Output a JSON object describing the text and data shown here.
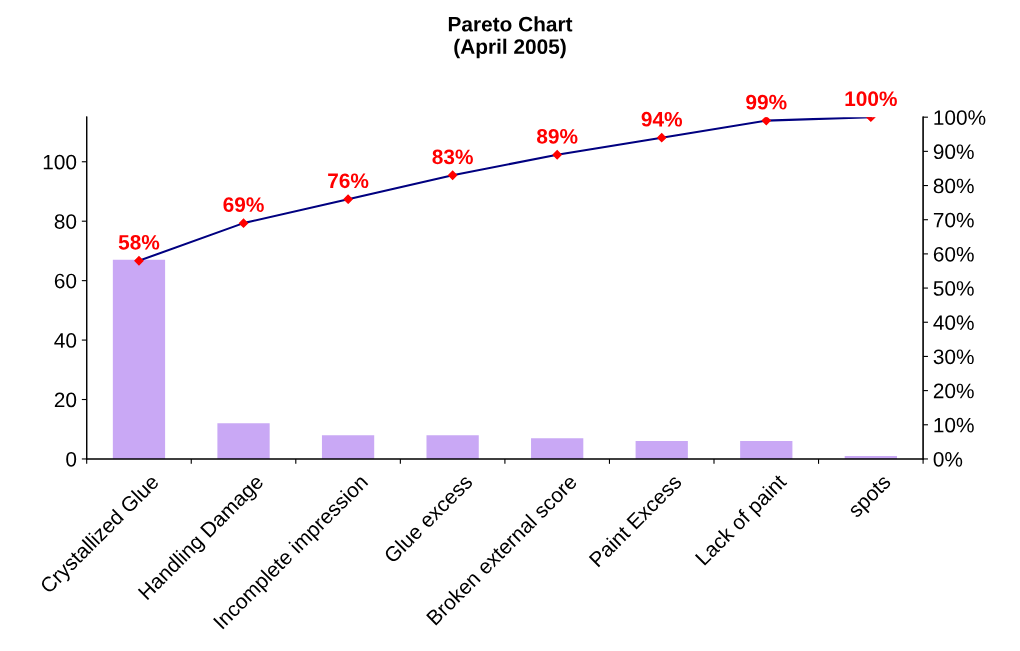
{
  "chart_data": {
    "type": "bar",
    "title": "Pareto Chart\n(April 2005)",
    "categories": [
      "Crystallized Glue",
      "Handling Damage",
      "Incomplete impression",
      "Glue excess",
      "Broken external score",
      "Paint Excess",
      "Lack of paint",
      "spots"
    ],
    "series": [
      {
        "color": "#c9a8f5",
        "values": [
          67,
          12,
          8,
          8,
          7,
          6,
          6,
          1
        ]
      },
      {
        "type": "line",
        "axis": "y2",
        "color": "#000080",
        "colors": [
          "#ff0000",
          "#ff0000",
          "#ff0000",
          "#ff0000",
          "#ff0000",
          "#ff0000",
          "#ff0000",
          "#ff0000"
        ],
        "values": [
          58,
          69,
          76,
          83,
          89,
          94,
          99,
          100
        ],
        "value_labels": [
          "58%",
          "69%",
          "76%",
          "83%",
          "89%",
          "94%",
          "99%",
          "100%"
        ]
      }
    ],
    "ylim": [
      0,
      115
    ],
    "yticks": [
      0,
      20,
      40,
      60,
      80,
      100
    ],
    "y2lim": [
      0,
      100
    ],
    "y2ticks": [
      {
        "value": 0,
        "label": "0%"
      },
      {
        "value": 10,
        "label": "10%"
      },
      {
        "value": 20,
        "label": "20%"
      },
      {
        "value": 30,
        "label": "30%"
      },
      {
        "value": 40,
        "label": "40%"
      },
      {
        "value": 50,
        "label": "50%"
      },
      {
        "value": 60,
        "label": "60%"
      },
      {
        "value": 70,
        "label": "70%"
      },
      {
        "value": 80,
        "label": "80%"
      },
      {
        "value": 90,
        "label": "90%"
      },
      {
        "value": 100,
        "label": "100%"
      }
    ],
    "marker": "diamond",
    "line_style": "solid",
    "grid": false
  }
}
